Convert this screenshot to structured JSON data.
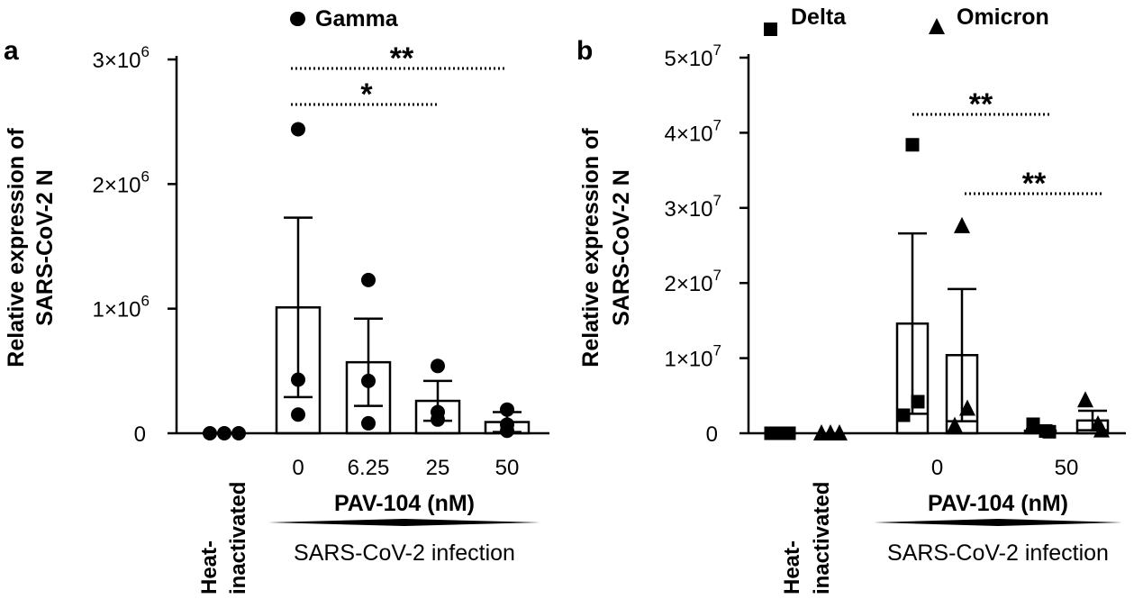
{
  "chart_data": [
    {
      "panel": "a",
      "type": "bar",
      "ylabel": [
        "Relative expression of",
        "SARS-CoV-2 N"
      ],
      "ylim": [
        0,
        3000000
      ],
      "yticks": [
        {
          "value": 0,
          "label": "0"
        },
        {
          "value": 1000000,
          "label": "1×10",
          "exp": "6"
        },
        {
          "value": 2000000,
          "label": "2×10",
          "exp": "6"
        },
        {
          "value": 3000000,
          "label": "3×10",
          "exp": "6"
        }
      ],
      "xlabel": "PAV-104 (nM)",
      "group_label": "SARS-CoV-2 infection",
      "control_label": [
        "Heat-",
        "inactivated"
      ],
      "categories": [
        "Heat-inactivated",
        "0",
        "6.25",
        "25",
        "50"
      ],
      "tick_labels": [
        "",
        "0",
        "6.25",
        "25",
        "50"
      ],
      "series": [
        {
          "name": "Gamma",
          "marker": "circle",
          "means": [
            0,
            1010000,
            570000,
            260000,
            90000
          ],
          "sem": [
            0,
            720000,
            350000,
            160000,
            80000
          ],
          "points": [
            [
              0,
              0,
              0
            ],
            [
              2440000,
              430000,
              150000
            ],
            [
              1230000,
              420000,
              80000
            ],
            [
              540000,
              170000,
              110000
            ],
            [
              190000,
              70000,
              20000
            ]
          ]
        }
      ],
      "significance": [
        {
          "from": "0",
          "to": "25",
          "label": "*"
        },
        {
          "from": "0",
          "to": "50",
          "label": "**"
        }
      ],
      "outlier": {
        "series": "Gamma",
        "category": "0",
        "value": 3300000
      }
    },
    {
      "panel": "b",
      "type": "bar",
      "ylabel": [
        "Relative expression of",
        "SARS-CoV-2 N"
      ],
      "ylim": [
        0,
        50000000
      ],
      "yticks": [
        {
          "value": 0,
          "label": "0"
        },
        {
          "value": 10000000,
          "label": "1×10",
          "exp": "7"
        },
        {
          "value": 20000000,
          "label": "2×10",
          "exp": "7"
        },
        {
          "value": 30000000,
          "label": "3×10",
          "exp": "7"
        },
        {
          "value": 40000000,
          "label": "4×10",
          "exp": "7"
        },
        {
          "value": 50000000,
          "label": "5×10",
          "exp": "7"
        }
      ],
      "xlabel": "PAV-104 (nM)",
      "group_label": "SARS-CoV-2 infection",
      "control_label": [
        "Heat-",
        "inactivated"
      ],
      "categories": [
        "Heat-inactivated",
        "0",
        "50"
      ],
      "tick_labels": [
        "",
        "0",
        "50"
      ],
      "series": [
        {
          "name": "Delta",
          "marker": "square",
          "means": [
            0,
            14600000,
            350000
          ],
          "sem": [
            0,
            12000000,
            200000
          ],
          "points": [
            [
              0,
              0,
              0
            ],
            [
              38400000,
              4200000,
              2400000
            ],
            [
              1200000,
              300000,
              200000
            ]
          ]
        },
        {
          "name": "Omicron",
          "marker": "triangle",
          "means": [
            0,
            10400000,
            1700000
          ],
          "sem": [
            0,
            8800000,
            1300000
          ],
          "points": [
            [
              0,
              0,
              0
            ],
            [
              27600000,
              3300000,
              1000000
            ],
            [
              4400000,
              1200000,
              400000
            ]
          ]
        }
      ],
      "significance": [
        {
          "series": "Delta",
          "from": "0",
          "to": "50",
          "label": "**"
        },
        {
          "series": "Omicron",
          "from": "0",
          "to": "50",
          "label": "**"
        }
      ]
    }
  ]
}
